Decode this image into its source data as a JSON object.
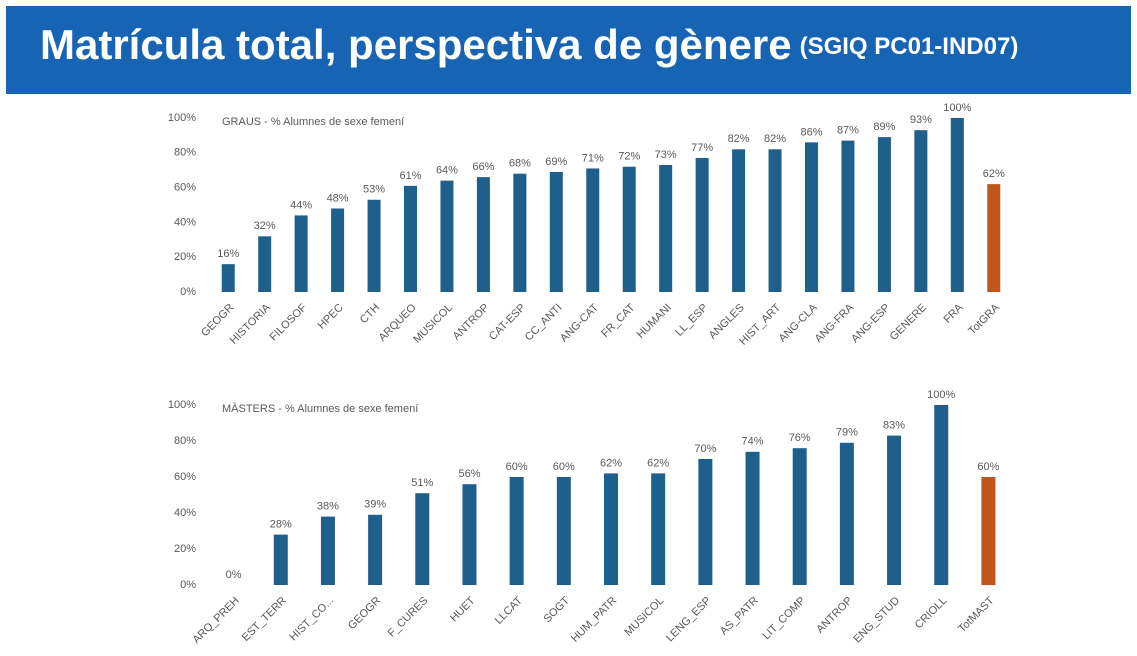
{
  "header": {
    "title": "Matrícula total, perspectiva de gènere",
    "code": "(SGIQ PC01-IND07)"
  },
  "chart_data": [
    {
      "type": "bar",
      "title": "GRAUS - % Alumnes de sexe femení",
      "categories": [
        "GEOGR",
        "HISTORIA",
        "FILOSOF",
        "HPEC",
        "CTH",
        "ARQUEO",
        "MUSICOL",
        "ANTROP",
        "CAT-ESP",
        "CC_ANTI",
        "ANG-CAT",
        "FR_CAT",
        "HUMANI",
        "LL_ESP",
        "ANGLES",
        "HIST_ART",
        "ANG-CLA",
        "ANG-FRA",
        "ANG-ESP",
        "GENERE",
        "FRA",
        "TotGRA"
      ],
      "values": [
        16,
        32,
        44,
        48,
        53,
        61,
        64,
        66,
        68,
        69,
        71,
        72,
        73,
        77,
        82,
        82,
        86,
        87,
        89,
        93,
        100,
        62
      ],
      "value_labels": [
        "16%",
        "32%",
        "44%",
        "48%",
        "53%",
        "61%",
        "64%",
        "66%",
        "68%",
        "69%",
        "71%",
        "72%",
        "73%",
        "77%",
        "82%",
        "82%",
        "86%",
        "87%",
        "89%",
        "93%",
        "100%",
        "62%"
      ],
      "colors": [
        "#1f5f8b",
        "#1f5f8b",
        "#1f5f8b",
        "#1f5f8b",
        "#1f5f8b",
        "#1f5f8b",
        "#1f5f8b",
        "#1f5f8b",
        "#1f5f8b",
        "#1f5f8b",
        "#1f5f8b",
        "#1f5f8b",
        "#1f5f8b",
        "#1f5f8b",
        "#1f5f8b",
        "#1f5f8b",
        "#1f5f8b",
        "#1f5f8b",
        "#1f5f8b",
        "#1f5f8b",
        "#1f5f8b",
        "#c0561d"
      ],
      "ylim": [
        0,
        100
      ],
      "yticks": [
        {
          "value": 0,
          "label": "0%"
        },
        {
          "value": 20,
          "label": "20%"
        },
        {
          "value": 40,
          "label": "40%"
        },
        {
          "value": 60,
          "label": "60%"
        },
        {
          "value": 80,
          "label": "80%"
        },
        {
          "value": 100,
          "label": "100%"
        }
      ]
    },
    {
      "type": "bar",
      "title": "MÀSTERS - % Alumnes de sexe femení",
      "categories": [
        "ARQ_PREH",
        "EST_TERR",
        "HIST_CO...",
        "GEOGR",
        "F_CURES",
        "HUET",
        "LLCAT",
        "SOGT",
        "HUM_PATR",
        "MUSICOL",
        "LENG_ESP",
        "AS_PATR",
        "LIT_COMP",
        "ANTROP",
        "ENG_STUD",
        "CRIOLL",
        "TotMAST"
      ],
      "values": [
        0,
        28,
        38,
        39,
        51,
        56,
        60,
        60,
        62,
        62,
        70,
        74,
        76,
        79,
        83,
        100,
        60
      ],
      "value_labels": [
        "0%",
        "28%",
        "38%",
        "39%",
        "51%",
        "56%",
        "60%",
        "60%",
        "62%",
        "62%",
        "70%",
        "74%",
        "76%",
        "79%",
        "83%",
        "100%",
        "60%"
      ],
      "colors": [
        "#1f5f8b",
        "#1f5f8b",
        "#1f5f8b",
        "#1f5f8b",
        "#1f5f8b",
        "#1f5f8b",
        "#1f5f8b",
        "#1f5f8b",
        "#1f5f8b",
        "#1f5f8b",
        "#1f5f8b",
        "#1f5f8b",
        "#1f5f8b",
        "#1f5f8b",
        "#1f5f8b",
        "#1f5f8b",
        "#c0561d"
      ],
      "ylim": [
        0,
        100
      ],
      "yticks": [
        {
          "value": 0,
          "label": "0%"
        },
        {
          "value": 20,
          "label": "20%"
        },
        {
          "value": 40,
          "label": "40%"
        },
        {
          "value": 60,
          "label": "60%"
        },
        {
          "value": 80,
          "label": "80%"
        },
        {
          "value": 100,
          "label": "100%"
        }
      ]
    }
  ]
}
